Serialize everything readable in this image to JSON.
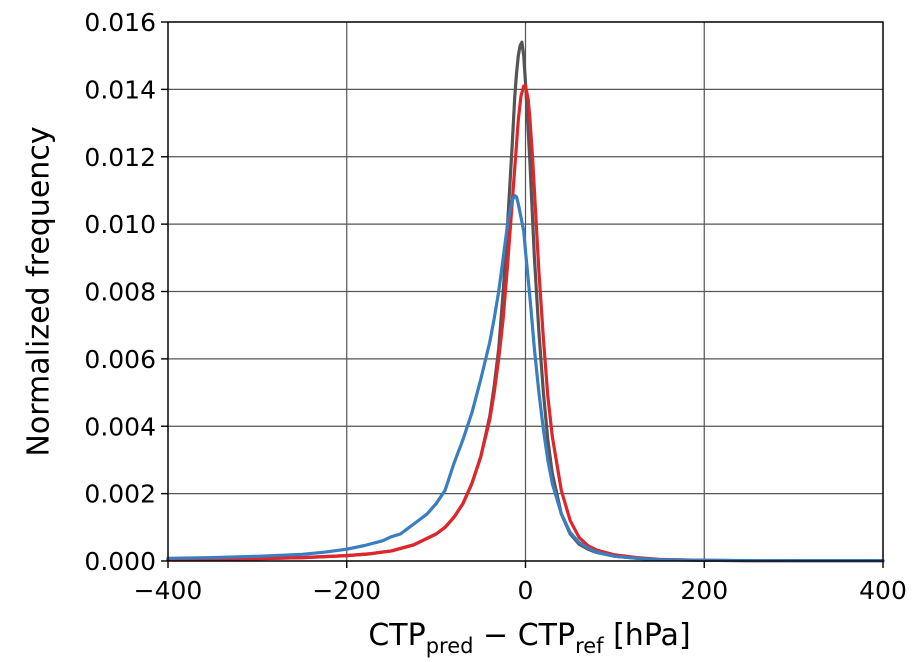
{
  "chart_data": {
    "type": "line",
    "title": "",
    "xlabel": {
      "main": "CTP",
      "sub1": "pred",
      "op": " − ",
      "main2": "CTP",
      "sub2": "ref",
      "unit": " [hPa]"
    },
    "ylabel": "Normalized frequency",
    "xlim": [
      -400,
      400
    ],
    "ylim": [
      0,
      0.016
    ],
    "xticks": [
      -400,
      -200,
      0,
      200,
      400
    ],
    "xtick_labels": [
      "−400",
      "−200",
      "0",
      "200",
      "400"
    ],
    "yticks": [
      0,
      0.002,
      0.004,
      0.006,
      0.008,
      0.01,
      0.012,
      0.014,
      0.016
    ],
    "ytick_labels": [
      "0.000",
      "0.002",
      "0.004",
      "0.006",
      "0.008",
      "0.010",
      "0.012",
      "0.014",
      "0.016"
    ],
    "grid": true,
    "legend": "none",
    "series": [
      {
        "color": "#555555",
        "x": [
          -400,
          -350,
          -300,
          -250,
          -200,
          -175,
          -150,
          -125,
          -100,
          -90,
          -80,
          -70,
          -60,
          -50,
          -40,
          -35,
          -30,
          -25,
          -20,
          -15,
          -12,
          -10,
          -8,
          -6,
          -4,
          -2,
          0,
          5,
          10,
          15,
          20,
          25,
          30,
          40,
          50,
          60,
          70,
          80,
          100,
          125,
          150,
          200,
          250,
          300,
          400
        ],
        "y": [
          5e-05,
          6e-05,
          7e-05,
          0.0001,
          0.00016,
          0.00021,
          0.0003,
          0.00048,
          0.0008,
          0.001,
          0.0013,
          0.0017,
          0.0023,
          0.0031,
          0.0043,
          0.0052,
          0.0063,
          0.008,
          0.01,
          0.0123,
          0.0138,
          0.0145,
          0.015,
          0.0153,
          0.0154,
          0.015,
          0.0142,
          0.0118,
          0.009,
          0.0068,
          0.005,
          0.0036,
          0.0026,
          0.0014,
          0.0008,
          0.0005,
          0.00035,
          0.00025,
          0.00014,
          8e-05,
          4e-05,
          2e-05,
          1e-05,
          1e-05,
          1e-05
        ]
      },
      {
        "color": "#e0262b",
        "x": [
          -400,
          -350,
          -300,
          -250,
          -200,
          -175,
          -150,
          -125,
          -100,
          -90,
          -80,
          -70,
          -60,
          -50,
          -40,
          -35,
          -30,
          -25,
          -20,
          -15,
          -10,
          -8,
          -5,
          -2,
          0,
          3,
          5,
          8,
          10,
          15,
          20,
          25,
          30,
          40,
          50,
          60,
          70,
          80,
          100,
          125,
          150,
          200,
          250,
          300,
          400
        ],
        "y": [
          5e-05,
          6e-05,
          7e-05,
          0.0001,
          0.00016,
          0.00021,
          0.0003,
          0.00048,
          0.0008,
          0.001,
          0.0013,
          0.0017,
          0.0023,
          0.0031,
          0.0042,
          0.005,
          0.006,
          0.0072,
          0.0088,
          0.0106,
          0.0124,
          0.0131,
          0.0138,
          0.0141,
          0.0141,
          0.0137,
          0.0131,
          0.0119,
          0.011,
          0.0086,
          0.0066,
          0.0049,
          0.0037,
          0.0021,
          0.0012,
          0.0007,
          0.00045,
          0.00032,
          0.00018,
          0.0001,
          5e-05,
          2e-05,
          1e-05,
          1e-05,
          1e-05
        ]
      },
      {
        "color": "#3a7ebf",
        "x": [
          -400,
          -350,
          -300,
          -250,
          -225,
          -200,
          -180,
          -160,
          -150,
          -140,
          -130,
          -120,
          -110,
          -100,
          -90,
          -80,
          -70,
          -60,
          -50,
          -40,
          -35,
          -30,
          -25,
          -20,
          -15,
          -12,
          -10,
          -8,
          -5,
          -2,
          0,
          5,
          10,
          15,
          20,
          25,
          30,
          40,
          50,
          60,
          70,
          80,
          100,
          125,
          150,
          200,
          300,
          400
        ],
        "y": [
          8e-05,
          0.0001,
          0.00014,
          0.0002,
          0.00026,
          0.00035,
          0.00046,
          0.0006,
          0.00072,
          0.0008,
          0.001,
          0.0012,
          0.0014,
          0.0017,
          0.0021,
          0.0029,
          0.0036,
          0.0044,
          0.0054,
          0.0065,
          0.0072,
          0.008,
          0.009,
          0.01,
          0.0107,
          0.01085,
          0.0108,
          0.0106,
          0.0102,
          0.0098,
          0.0092,
          0.0078,
          0.0063,
          0.005,
          0.0039,
          0.003,
          0.0023,
          0.0014,
          0.00085,
          0.00055,
          0.00038,
          0.00026,
          0.00014,
          8e-05,
          4e-05,
          2e-05,
          1e-05,
          1e-05
        ]
      }
    ]
  }
}
